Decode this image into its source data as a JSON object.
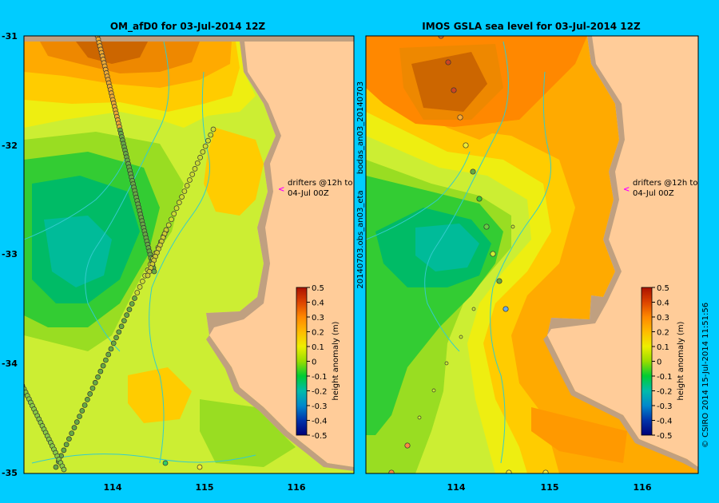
{
  "left_panel": {
    "title": "OM_afD0 for 03-Jul-2014 12Z",
    "lat_ticks": [
      "-31",
      "-32",
      "-33",
      "-34",
      "-35"
    ],
    "lon_ticks": [
      "114",
      "115",
      "116"
    ],
    "annotation": "drifters @12h to\n04-Jul 00Z",
    "colorbar_label": "height anomaly (m)"
  },
  "right_panel": {
    "title": "IMOS GSLA sea level  for 03-Jul-2014 12Z",
    "lon_ticks": [
      "114",
      "115",
      "116"
    ],
    "annotation": "drifters @12h to\n04-Jul 00Z",
    "colorbar_label": "height anomaly (m)"
  },
  "colorbar": {
    "ticks": [
      "0.5",
      "0.4",
      "0.3",
      "0.2",
      "0.1",
      "0",
      "-0.1",
      "-0.2",
      "-0.3",
      "-0.4",
      "-0.5"
    ]
  },
  "side_left_text": "20140703.obs_an03_eta",
  "side_left_text2": "bodas_an03_20140703",
  "side_right_text": "© CSIRO 2014   15-Jul-2014 11:51:56",
  "colors": {
    "background": "#00ccff",
    "land": "#ffcc99",
    "coast_shadow": "#c0a080",
    "river": "#33cccc"
  }
}
